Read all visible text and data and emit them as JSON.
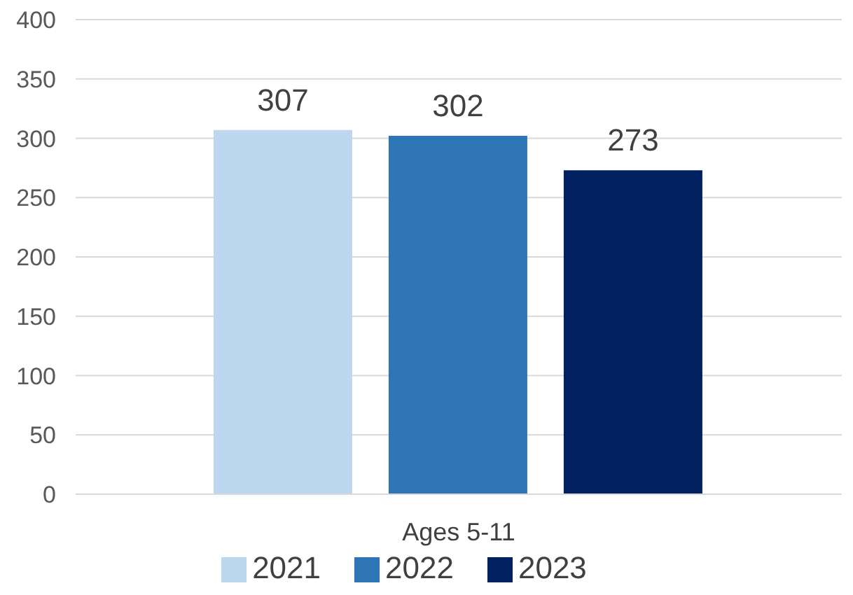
{
  "chart_data": {
    "type": "bar",
    "categories": [
      "Ages 5-11"
    ],
    "series": [
      {
        "name": "2021",
        "color": "#bdd7ee",
        "values": [
          307
        ]
      },
      {
        "name": "2022",
        "color": "#2e75b6",
        "values": [
          302
        ]
      },
      {
        "name": "2023",
        "color": "#002060",
        "values": [
          273
        ]
      }
    ],
    "ylim": [
      0,
      400
    ],
    "yticks": [
      0,
      50,
      100,
      150,
      200,
      250,
      300,
      350,
      400
    ],
    "grid": "y",
    "legend": "bottom",
    "data_labels": true
  }
}
